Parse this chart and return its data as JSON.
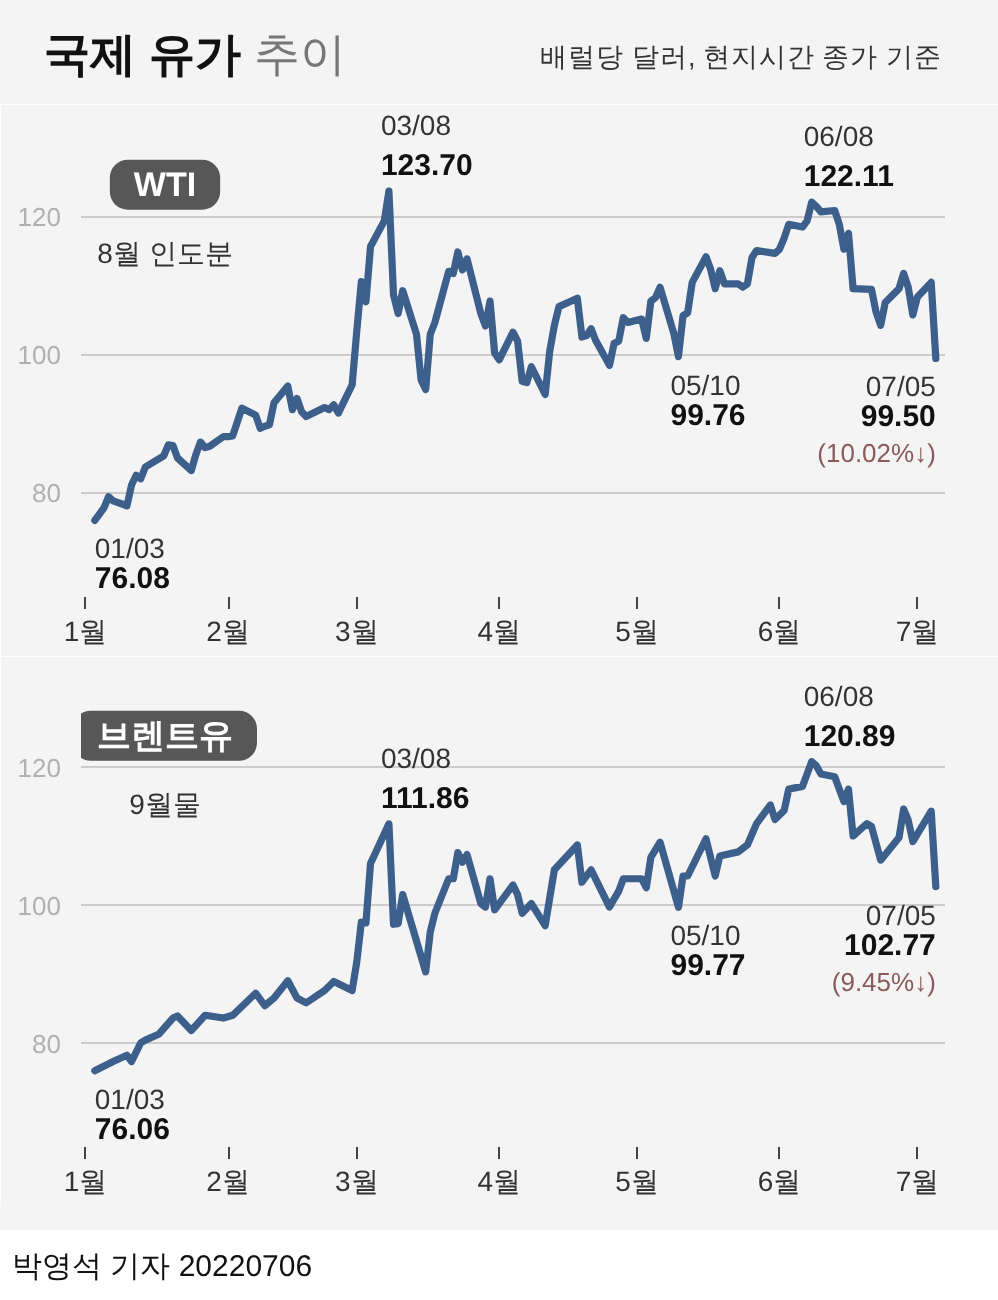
{
  "chart_data": [
    {
      "type": "other",
      "title": "국제 유가 추이",
      "subtitle": "배럴당 달러, 현지시간 종가 기준"
    },
    {
      "type": "line",
      "title": "WTI",
      "subtitle": "8월 인도분",
      "color": "#3d5f8c",
      "x": [
        "2022-01-03",
        "2022-01-04",
        "2022-01-05",
        "2022-01-06",
        "2022-01-07",
        "2022-01-10",
        "2022-01-11",
        "2022-01-12",
        "2022-01-13",
        "2022-01-14",
        "2022-01-18",
        "2022-01-19",
        "2022-01-20",
        "2022-01-21",
        "2022-01-24",
        "2022-01-25",
        "2022-01-26",
        "2022-01-27",
        "2022-01-28",
        "2022-01-31",
        "2022-02-01",
        "2022-02-02",
        "2022-02-03",
        "2022-02-04",
        "2022-02-07",
        "2022-02-08",
        "2022-02-09",
        "2022-02-10",
        "2022-02-11",
        "2022-02-14",
        "2022-02-15",
        "2022-02-16",
        "2022-02-17",
        "2022-02-18",
        "2022-02-22",
        "2022-02-23",
        "2022-02-24",
        "2022-02-25",
        "2022-02-28",
        "2022-03-01",
        "2022-03-02",
        "2022-03-03",
        "2022-03-04",
        "2022-03-07",
        "2022-03-08",
        "2022-03-09",
        "2022-03-10",
        "2022-03-11",
        "2022-03-14",
        "2022-03-15",
        "2022-03-16",
        "2022-03-17",
        "2022-03-18",
        "2022-03-21",
        "2022-03-22",
        "2022-03-23",
        "2022-03-24",
        "2022-03-25",
        "2022-03-28",
        "2022-03-29",
        "2022-03-30",
        "2022-03-31",
        "2022-04-01",
        "2022-04-04",
        "2022-04-05",
        "2022-04-06",
        "2022-04-07",
        "2022-04-08",
        "2022-04-11",
        "2022-04-12",
        "2022-04-13",
        "2022-04-14",
        "2022-04-18",
        "2022-04-19",
        "2022-04-20",
        "2022-04-21",
        "2022-04-22",
        "2022-04-25",
        "2022-04-26",
        "2022-04-27",
        "2022-04-28",
        "2022-04-29",
        "2022-05-02",
        "2022-05-03",
        "2022-05-04",
        "2022-05-05",
        "2022-05-06",
        "2022-05-09",
        "2022-05-10",
        "2022-05-11",
        "2022-05-12",
        "2022-05-13",
        "2022-05-16",
        "2022-05-17",
        "2022-05-18",
        "2022-05-19",
        "2022-05-20",
        "2022-05-23",
        "2022-05-24",
        "2022-05-25",
        "2022-05-26",
        "2022-05-27",
        "2022-05-31",
        "2022-06-01",
        "2022-06-02",
        "2022-06-03",
        "2022-06-06",
        "2022-06-07",
        "2022-06-08",
        "2022-06-09",
        "2022-06-10",
        "2022-06-13",
        "2022-06-14",
        "2022-06-15",
        "2022-06-16",
        "2022-06-17",
        "2022-06-21",
        "2022-06-22",
        "2022-06-23",
        "2022-06-24",
        "2022-06-27",
        "2022-06-28",
        "2022-06-29",
        "2022-06-30",
        "2022-07-01",
        "2022-07-04",
        "2022-07-05"
      ],
      "values": [
        76.08,
        77.0,
        77.9,
        79.5,
        78.9,
        78.2,
        81.2,
        82.6,
        82.1,
        83.8,
        85.4,
        87.0,
        86.9,
        85.1,
        83.3,
        85.6,
        87.4,
        86.6,
        86.8,
        88.2,
        88.2,
        88.3,
        90.3,
        92.3,
        91.3,
        89.4,
        89.7,
        89.9,
        93.1,
        95.5,
        92.1,
        93.7,
        91.8,
        91.1,
        92.4,
        92.1,
        92.8,
        91.6,
        95.7,
        103.4,
        110.6,
        107.7,
        115.7,
        119.4,
        123.7,
        108.7,
        106.0,
        109.3,
        103.0,
        96.4,
        95.0,
        103.0,
        104.7,
        112.1,
        111.8,
        114.9,
        112.3,
        113.9,
        106.0,
        104.2,
        107.8,
        100.3,
        99.3,
        103.3,
        102.0,
        96.2,
        96.0,
        98.3,
        94.3,
        100.6,
        104.3,
        107.0,
        108.2,
        102.6,
        102.8,
        103.8,
        102.1,
        98.5,
        101.7,
        102.0,
        105.4,
        104.7,
        105.2,
        102.4,
        107.8,
        108.3,
        109.8,
        103.1,
        99.76,
        105.7,
        106.1,
        110.5,
        114.2,
        112.4,
        109.6,
        112.2,
        110.3,
        110.3,
        109.8,
        110.3,
        114.1,
        115.1,
        114.7,
        115.3,
        116.9,
        118.9,
        118.5,
        119.4,
        122.11,
        121.5,
        120.7,
        120.9,
        118.9,
        115.3,
        117.6,
        109.6,
        109.5,
        106.2,
        104.3,
        107.6,
        109.6,
        111.8,
        109.8,
        105.8,
        108.4,
        110.5,
        99.5
      ],
      "value_labels": [
        "76.08",
        null,
        null,
        null,
        null,
        null,
        null,
        null,
        null,
        null,
        null,
        null,
        null,
        null,
        null,
        null,
        null,
        null,
        null,
        null,
        null,
        null,
        null,
        null,
        null,
        null,
        null,
        null,
        null,
        null,
        null,
        null,
        null,
        null,
        null,
        null,
        null,
        null,
        null,
        null,
        null,
        null,
        null,
        null,
        "123.70",
        null,
        null,
        null,
        null,
        null,
        null,
        null,
        null,
        null,
        null,
        null,
        null,
        null,
        null,
        null,
        null,
        null,
        null,
        null,
        null,
        null,
        null,
        null,
        null,
        null,
        null,
        null,
        null,
        null,
        null,
        null,
        null,
        null,
        null,
        null,
        null,
        null,
        null,
        null,
        null,
        null,
        null,
        null,
        "99.76",
        null,
        null,
        null,
        null,
        null,
        null,
        null,
        null,
        null,
        null,
        null,
        null,
        null,
        null,
        null,
        null,
        null,
        null,
        null,
        "122.11",
        null,
        null,
        null,
        null,
        null,
        null,
        null,
        null,
        null,
        null,
        null,
        null,
        null,
        null,
        null,
        null,
        null,
        "99.50"
      ],
      "xlim": [
        "2021-12-31",
        "2022-07-07"
      ],
      "ylim": [
        65,
        135
      ],
      "xticks": [
        {
          "value": "2022-01-01",
          "label": "1월"
        },
        {
          "value": "2022-02-01",
          "label": "2월"
        },
        {
          "value": "2022-03-01",
          "label": "3월"
        },
        {
          "value": "2022-04-01",
          "label": "4월"
        },
        {
          "value": "2022-05-01",
          "label": "5월"
        },
        {
          "value": "2022-06-01",
          "label": "6월"
        },
        {
          "value": "2022-07-01",
          "label": "7월"
        }
      ],
      "yticks": [
        80,
        100,
        120
      ],
      "grid": "y",
      "annotations": [
        {
          "text": "01/03",
          "x": "2022-01-03",
          "y": 76.08
        },
        {
          "text": "03/08",
          "x": "2022-03-08",
          "y": 123.7
        },
        {
          "text": "05/10",
          "x": "2022-05-10",
          "y": 99.76
        },
        {
          "text": "06/08",
          "x": "2022-06-08",
          "y": 122.11
        },
        {
          "text": "07/05",
          "x": "2022-07-05",
          "y": 99.5
        },
        "(10.02%↓)"
      ]
    },
    {
      "type": "line",
      "title": "브렌트유",
      "subtitle": "9월물",
      "color": "#3d5f8c",
      "x": [
        "2022-01-03",
        "2022-01-07",
        "2022-01-10",
        "2022-01-11",
        "2022-01-13",
        "2022-01-14",
        "2022-01-17",
        "2022-01-20",
        "2022-01-21",
        "2022-01-24",
        "2022-01-27",
        "2022-01-31",
        "2022-02-02",
        "2022-02-07",
        "2022-02-09",
        "2022-02-11",
        "2022-02-14",
        "2022-02-16",
        "2022-02-18",
        "2022-02-22",
        "2022-02-24",
        "2022-02-28",
        "2022-03-01",
        "2022-03-02",
        "2022-03-03",
        "2022-03-04",
        "2022-03-08",
        "2022-03-09",
        "2022-03-10",
        "2022-03-11",
        "2022-03-16",
        "2022-03-17",
        "2022-03-18",
        "2022-03-21",
        "2022-03-22",
        "2022-03-23",
        "2022-03-24",
        "2022-03-25",
        "2022-03-28",
        "2022-03-29",
        "2022-03-30",
        "2022-03-31",
        "2022-04-04",
        "2022-04-05",
        "2022-04-06",
        "2022-04-08",
        "2022-04-11",
        "2022-04-13",
        "2022-04-18",
        "2022-04-19",
        "2022-04-21",
        "2022-04-25",
        "2022-04-27",
        "2022-04-28",
        "2022-05-02",
        "2022-05-03",
        "2022-05-04",
        "2022-05-06",
        "2022-05-10",
        "2022-05-11",
        "2022-05-12",
        "2022-05-16",
        "2022-05-18",
        "2022-05-19",
        "2022-05-23",
        "2022-05-25",
        "2022-05-27",
        "2022-05-30",
        "2022-05-31",
        "2022-06-02",
        "2022-06-03",
        "2022-06-06",
        "2022-06-08",
        "2022-06-09",
        "2022-06-10",
        "2022-06-13",
        "2022-06-15",
        "2022-06-16",
        "2022-06-17",
        "2022-06-20",
        "2022-06-21",
        "2022-06-23",
        "2022-06-27",
        "2022-06-28",
        "2022-06-29",
        "2022-06-30",
        "2022-07-04",
        "2022-07-05"
      ],
      "values": [
        76.06,
        77.4,
        78.3,
        77.4,
        80.1,
        80.5,
        81.4,
        83.7,
        84.0,
        81.9,
        84.1,
        83.7,
        84.1,
        87.3,
        85.5,
        86.6,
        89.1,
        86.6,
        85.9,
        87.7,
        89.0,
        87.7,
        91.8,
        97.6,
        97.5,
        106.1,
        111.86,
        97.3,
        97.4,
        101.6,
        90.4,
        96.2,
        98.9,
        103.9,
        103.9,
        107.7,
        106.3,
        107.4,
        100.3,
        99.8,
        103.9,
        99.4,
        103.0,
        101.6,
        98.9,
        100.3,
        97.1,
        105.2,
        108.8,
        103.4,
        105.2,
        99.8,
        102.1,
        103.9,
        103.9,
        102.6,
        107.0,
        109.2,
        99.77,
        104.3,
        104.3,
        109.7,
        104.3,
        107.2,
        107.8,
        108.8,
        111.9,
        114.6,
        112.5,
        113.8,
        116.9,
        117.3,
        120.89,
        120.3,
        119.1,
        118.7,
        115.1,
        116.9,
        110.1,
        111.9,
        111.5,
        106.6,
        109.9,
        114.0,
        112.4,
        109.3,
        113.7,
        102.77
      ],
      "value_labels": [
        "76.06",
        null,
        null,
        null,
        null,
        null,
        null,
        null,
        null,
        null,
        null,
        null,
        null,
        null,
        null,
        null,
        null,
        null,
        null,
        null,
        null,
        null,
        null,
        null,
        null,
        null,
        "111.86",
        null,
        null,
        null,
        null,
        null,
        null,
        null,
        null,
        null,
        null,
        null,
        null,
        null,
        null,
        null,
        null,
        null,
        null,
        null,
        null,
        null,
        null,
        null,
        null,
        null,
        null,
        null,
        null,
        null,
        null,
        null,
        "99.77",
        null,
        null,
        null,
        null,
        null,
        null,
        null,
        null,
        null,
        null,
        null,
        null,
        null,
        "120.89",
        null,
        null,
        null,
        null,
        null,
        null,
        null,
        null,
        null,
        null,
        null,
        null,
        null,
        null,
        "102.77"
      ],
      "xlim": [
        "2021-12-31",
        "2022-07-07"
      ],
      "ylim": [
        65,
        132
      ],
      "xticks": [
        {
          "value": "2022-01-01",
          "label": "1월"
        },
        {
          "value": "2022-02-01",
          "label": "2월"
        },
        {
          "value": "2022-03-01",
          "label": "3월"
        },
        {
          "value": "2022-04-01",
          "label": "4월"
        },
        {
          "value": "2022-05-01",
          "label": "5월"
        },
        {
          "value": "2022-06-01",
          "label": "6월"
        },
        {
          "value": "2022-07-01",
          "label": "7월"
        }
      ],
      "yticks": [
        80,
        100,
        120
      ],
      "grid": "y",
      "annotations": [
        {
          "text": "01/03",
          "x": "2022-01-03",
          "y": 76.06
        },
        {
          "text": "03/08",
          "x": "2022-03-08",
          "y": 111.86
        },
        {
          "text": "05/10",
          "x": "2022-05-10",
          "y": 99.77
        },
        {
          "text": "06/08",
          "x": "2022-06-08",
          "y": 120.89
        },
        {
          "text": "07/05",
          "x": "2022-07-05",
          "y": 102.77
        },
        "(9.45%↓)"
      ]
    },
    {
      "type": "other",
      "annotations": [
        "박영석 기자 20220706"
      ]
    }
  ]
}
